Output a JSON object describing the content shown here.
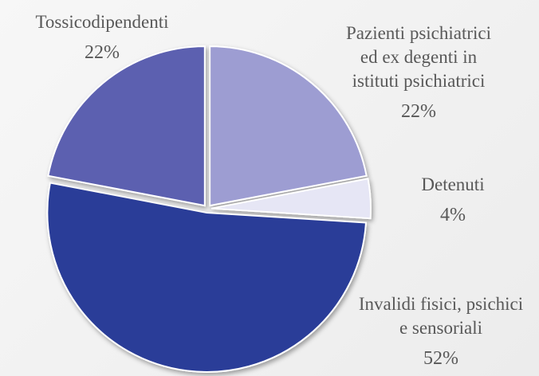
{
  "chart_data": {
    "type": "pie",
    "categories": [
      "Pazienti psichiatrici ed ex degenti in istituti psichiatrici",
      "Detenuti",
      "Invalidi fisici, psichici e sensoriali",
      "Tossicodipendenti"
    ],
    "values": [
      22,
      4,
      52,
      22
    ],
    "value_labels": [
      "22%",
      "4%",
      "52%",
      "22%"
    ],
    "colors": [
      "#9d9dd2",
      "#e6e6f5",
      "#2b3e98",
      "#5c60b0"
    ]
  }
}
